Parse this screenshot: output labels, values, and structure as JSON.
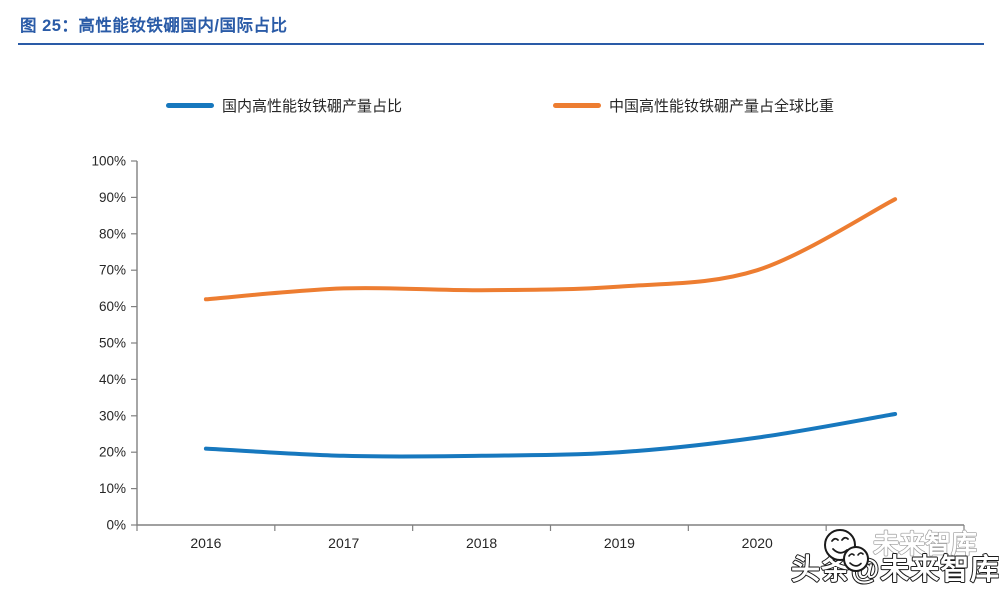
{
  "header": {
    "title": "图 25：高性能钕铁硼国内/国际占比",
    "title_color": "#2A5BA7",
    "rule_color": "#2A5BA7"
  },
  "legend": {
    "items": [
      {
        "key": "domestic",
        "label": "国内高性能钕铁硼产量占比",
        "color": "#1778BE"
      },
      {
        "key": "global",
        "label": "中国高性能钕铁硼产量占全球比重",
        "color": "#ED7D31"
      }
    ]
  },
  "watermark": {
    "main_text": "头条@未来智库",
    "ghost_text": "未来智库",
    "icon": "smiley-chat-bubbles-icon"
  },
  "chart_data": {
    "type": "line",
    "title": "高性能钕铁硼国内/国际占比",
    "categories": [
      "2016",
      "2017",
      "2018",
      "2019",
      "2020",
      ""
    ],
    "series": [
      {
        "key": "domestic",
        "name": "国内高性能钕铁硼产量占比",
        "color": "#1778BE",
        "values": [
          21,
          19,
          19,
          20,
          24,
          30.5
        ]
      },
      {
        "key": "global",
        "name": "中国高性能钕铁硼产量占全球比重",
        "color": "#ED7D31",
        "values": [
          62,
          65,
          64.5,
          65.5,
          70,
          89.5
        ]
      }
    ],
    "ylim": [
      0,
      100
    ],
    "ytick_step": 10,
    "yticks": [
      "0%",
      "10%",
      "20%",
      "30%",
      "40%",
      "50%",
      "60%",
      "70%",
      "80%",
      "90%",
      "100%"
    ],
    "ytick_format": "percent",
    "xlabel": "",
    "ylabel": "",
    "grid": false,
    "legend_position": "top",
    "line_width": 4,
    "smooth_lines": true,
    "axis_color": "#808080",
    "tick_label_color": "#262626",
    "layout_note": "last x category label hidden behind watermark"
  }
}
